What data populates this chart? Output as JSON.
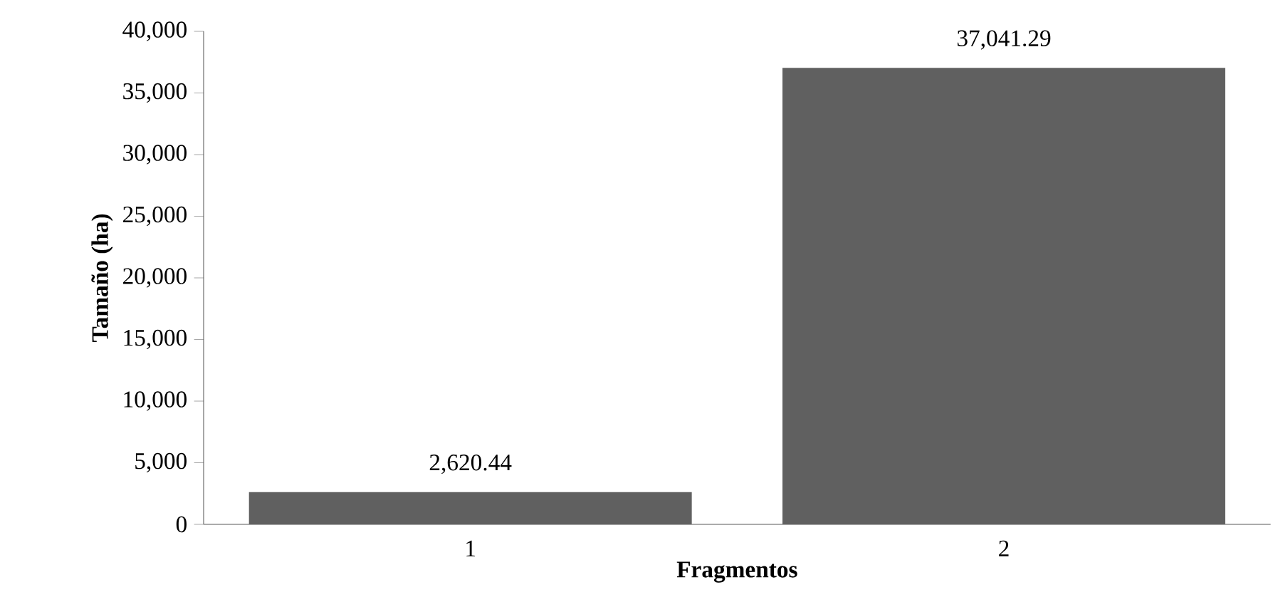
{
  "chart_data": {
    "type": "bar",
    "xlabel": "Fragmentos",
    "ylabel": "Tamaño (ha)",
    "categories": [
      "1",
      "2"
    ],
    "values": [
      2620.44,
      37041.29
    ],
    "color": "#606060",
    "value_labels": [
      "2,620.44",
      "37,041.29"
    ],
    "ylim": [
      0,
      40000
    ],
    "yticks": [
      0,
      {
        "value": 5000,
        "label": "5,000"
      },
      {
        "value": 10000,
        "label": "10,000"
      },
      {
        "value": 15000,
        "label": "15,000"
      },
      {
        "value": 20000,
        "label": "20,000"
      },
      {
        "value": 25000,
        "label": "25,000"
      },
      {
        "value": 30000,
        "label": "30,000"
      },
      {
        "value": 35000,
        "label": "35,000"
      },
      {
        "value": 40000,
        "label": "40,000"
      }
    ],
    "grid": false
  }
}
